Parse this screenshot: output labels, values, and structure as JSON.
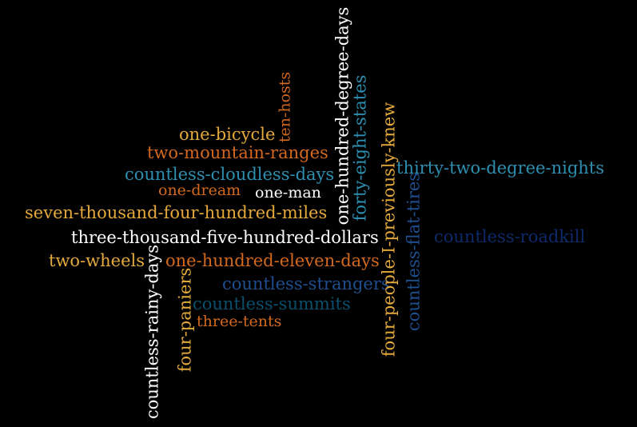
{
  "words": {
    "one_bicycle": "one-bicycle",
    "two_mountain_ranges": "two-mountain-ranges",
    "countless_cloudless_days": "countless-cloudless-days",
    "one_dream": "one-dream",
    "one_man": "one-man",
    "seven_thousand_four_hundred_miles": "seven-thousand-four-hundred-miles",
    "three_thousand_five_hundred_dollars": "three-thousand-five-hundred-dollars",
    "two_wheels": "two-wheels",
    "one_hundred_eleven_days": "one-hundred-eleven-days",
    "countless_strangers": "countless-strangers",
    "countless_summits": "countless-summits",
    "three_tents": "three-tents",
    "thirty_two_degree_nights": "thirty-two-degree-nights",
    "countless_roadkill": "countless-roadkill",
    "ten_hosts": "ten-hosts",
    "one_hundred_degree_days": "one-hundred-degree-days",
    "forty_eight_states": "forty-eight-states",
    "four_people_i_previously_knew": "four-people-I-previously-knew",
    "countless_flat_tires": "countless-flat-tires",
    "countless_rainy_days": "countless-rainy-days",
    "four_paniers": "four-paniers"
  },
  "colors": {
    "background": "#000000",
    "gold": "#e3a93b",
    "orange": "#d2691e",
    "teal": "#2f8fb0",
    "white": "#ffffff",
    "navy": "#0e2a6b",
    "blue": "#1f4f8f",
    "dark_teal": "#0b4f6c"
  }
}
